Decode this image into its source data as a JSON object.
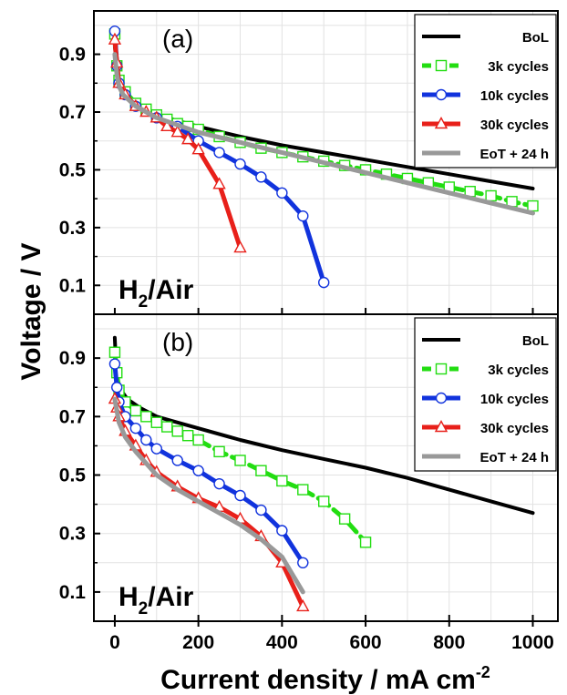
{
  "chart_data": {
    "type": "line",
    "ylabel": "Voltage / V",
    "xlabel": "Current density / mA cm",
    "xlabel_superscript": "-2",
    "x_ticks": [
      "0",
      "200",
      "400",
      "600",
      "800",
      "1000"
    ],
    "y_ticks": [
      "0.9",
      "0.7",
      "0.5",
      "0.3",
      "0.1"
    ],
    "xlim": [
      -50,
      1060
    ],
    "ylim": [
      0.0,
      1.05
    ],
    "legend_position": "top-right",
    "colors": {
      "BoL": "#000000",
      "3k cycles": "#22dd11",
      "10k cycles": "#1133dd",
      "30k cycles": "#e8201a",
      "EoT + 24 h": "#999999"
    },
    "panels": [
      {
        "label": "(a)",
        "annotation_main": "H",
        "annotation_sub": "2",
        "annotation_rest": "/Air",
        "series": [
          {
            "name": "BoL",
            "marker": "none",
            "x": [
              0,
              5,
              10,
              20,
              50,
              100,
              150,
              200,
              300,
              400,
              500,
              600,
              700,
              800,
              900,
              1000
            ],
            "y": [
              0.93,
              0.85,
              0.8,
              0.76,
              0.72,
              0.69,
              0.67,
              0.65,
              0.615,
              0.585,
              0.56,
              0.535,
              0.51,
              0.485,
              0.46,
              0.435
            ]
          },
          {
            "name": "3k cycles",
            "marker": "square",
            "x": [
              0,
              5,
              10,
              25,
              50,
              75,
              100,
              125,
              150,
              175,
              200,
              250,
              300,
              350,
              400,
              450,
              500,
              550,
              600,
              650,
              700,
              750,
              800,
              850,
              900,
              950,
              1000
            ],
            "y": [
              0.97,
              0.86,
              0.81,
              0.77,
              0.73,
              0.71,
              0.69,
              0.675,
              0.66,
              0.65,
              0.64,
              0.615,
              0.595,
              0.575,
              0.56,
              0.545,
              0.53,
              0.515,
              0.5,
              0.485,
              0.47,
              0.455,
              0.44,
              0.425,
              0.41,
              0.39,
              0.375
            ]
          },
          {
            "name": "10k cycles",
            "marker": "circle",
            "x": [
              0,
              5,
              10,
              25,
              50,
              100,
              150,
              200,
              250,
              300,
              350,
              400,
              450,
              500
            ],
            "y": [
              0.98,
              0.86,
              0.8,
              0.76,
              0.72,
              0.68,
              0.65,
              0.6,
              0.56,
              0.52,
              0.475,
              0.42,
              0.34,
              0.11
            ]
          },
          {
            "name": "30k cycles",
            "marker": "triangle",
            "x": [
              0,
              5,
              10,
              25,
              50,
              75,
              100,
              125,
              150,
              175,
              200,
              250,
              300
            ],
            "y": [
              0.95,
              0.87,
              0.8,
              0.76,
              0.72,
              0.7,
              0.68,
              0.65,
              0.63,
              0.605,
              0.57,
              0.45,
              0.23
            ]
          },
          {
            "name": "EoT + 24 h",
            "marker": "none",
            "x": [
              0,
              5,
              10,
              20,
              50,
              100,
              200,
              300,
              400,
              500,
              600,
              700,
              800,
              900,
              1000
            ],
            "y": [
              0.9,
              0.83,
              0.79,
              0.76,
              0.72,
              0.68,
              0.63,
              0.595,
              0.56,
              0.525,
              0.49,
              0.455,
              0.42,
              0.385,
              0.35
            ]
          }
        ]
      },
      {
        "label": "(b)",
        "annotation_main": "H",
        "annotation_sub": "2",
        "annotation_rest": "/Air",
        "series": [
          {
            "name": "BoL",
            "marker": "none",
            "x": [
              0,
              3,
              8,
              15,
              30,
              60,
              100,
              150,
              200,
              300,
              400,
              500,
              600,
              700,
              800,
              900,
              1000
            ],
            "y": [
              0.97,
              0.88,
              0.82,
              0.79,
              0.76,
              0.73,
              0.7,
              0.68,
              0.66,
              0.62,
              0.585,
              0.555,
              0.525,
              0.49,
              0.45,
              0.41,
              0.37
            ]
          },
          {
            "name": "3k cycles",
            "marker": "square",
            "x": [
              0,
              5,
              10,
              25,
              50,
              75,
              100,
              125,
              150,
              175,
              200,
              250,
              300,
              350,
              400,
              450,
              500,
              550,
              600
            ],
            "y": [
              0.92,
              0.85,
              0.79,
              0.75,
              0.72,
              0.7,
              0.68,
              0.665,
              0.65,
              0.635,
              0.62,
              0.58,
              0.55,
              0.515,
              0.48,
              0.45,
              0.41,
              0.35,
              0.27
            ]
          },
          {
            "name": "10k cycles",
            "marker": "circle",
            "x": [
              0,
              5,
              10,
              25,
              50,
              75,
              100,
              150,
              200,
              250,
              300,
              350,
              400,
              450
            ],
            "y": [
              0.88,
              0.8,
              0.75,
              0.7,
              0.66,
              0.62,
              0.59,
              0.55,
              0.515,
              0.47,
              0.43,
              0.38,
              0.31,
              0.2
            ]
          },
          {
            "name": "30k cycles",
            "marker": "triangle",
            "x": [
              0,
              5,
              10,
              25,
              50,
              75,
              100,
              150,
              200,
              250,
              300,
              350,
              400,
              450
            ],
            "y": [
              0.76,
              0.73,
              0.7,
              0.65,
              0.6,
              0.55,
              0.51,
              0.46,
              0.42,
              0.39,
              0.35,
              0.29,
              0.2,
              0.05
            ]
          },
          {
            "name": "EoT + 24 h",
            "marker": "none",
            "x": [
              0,
              5,
              10,
              25,
              50,
              100,
              150,
              200,
              250,
              300,
              350,
              400,
              425,
              450
            ],
            "y": [
              0.76,
              0.72,
              0.68,
              0.63,
              0.58,
              0.5,
              0.45,
              0.41,
              0.37,
              0.33,
              0.28,
              0.22,
              0.16,
              0.1
            ]
          }
        ]
      }
    ]
  }
}
